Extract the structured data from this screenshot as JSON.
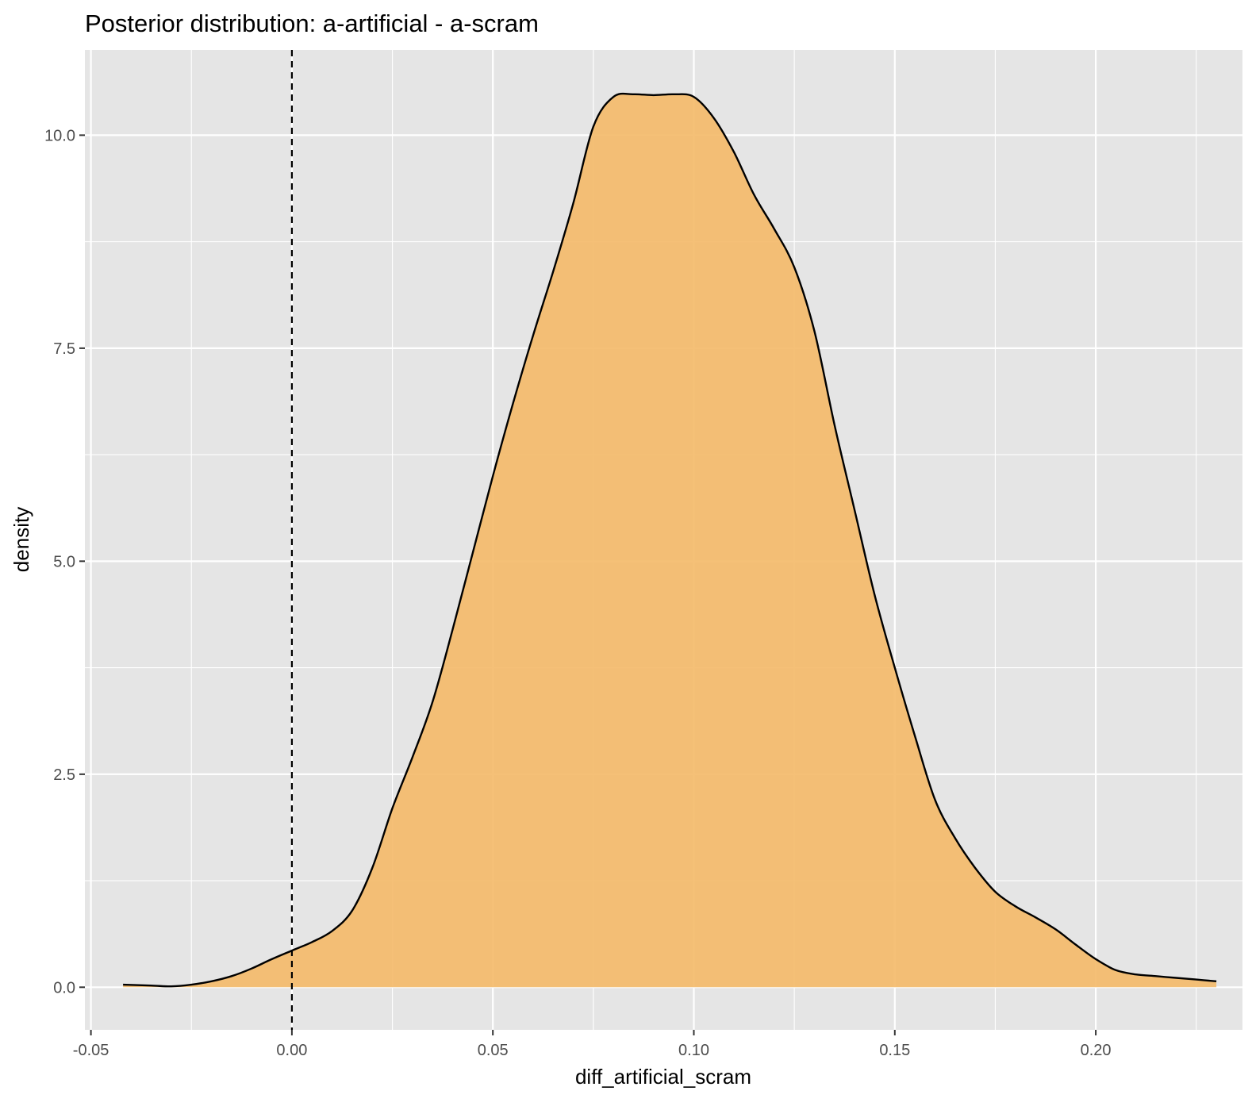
{
  "chart_data": {
    "type": "area",
    "title": "Posterior distribution: a-artificial - a-scram",
    "xlabel": "diff_artificial_scram",
    "ylabel": "density",
    "xlim": [
      -0.0515,
      0.2365
    ],
    "ylim": [
      -0.5,
      11.0
    ],
    "grid": true,
    "x_ticks": [
      -0.05,
      0.0,
      0.05,
      0.1,
      0.15,
      0.2
    ],
    "x_tick_labels": [
      "-0.05",
      "0.00",
      "0.05",
      "0.10",
      "0.15",
      "0.20"
    ],
    "x_minor_ticks": [
      -0.025,
      0.025,
      0.075,
      0.125,
      0.175,
      0.225
    ],
    "y_ticks": [
      0.0,
      2.5,
      5.0,
      7.5,
      10.0
    ],
    "y_tick_labels": [
      "0.0",
      "2.5",
      "5.0",
      "7.5",
      "10.0"
    ],
    "y_minor_ticks": [
      1.25,
      3.75,
      6.25,
      8.75
    ],
    "reference_line": {
      "x": 0.0,
      "style": "dashed"
    },
    "fill_color": "#f4bb6b",
    "line_color": "#000000",
    "panel_color": "#e5e5e5",
    "series": [
      {
        "x": [
          -0.042,
          -0.035,
          -0.03,
          -0.025,
          -0.02,
          -0.015,
          -0.01,
          -0.005,
          0.0,
          0.005,
          0.01,
          0.015,
          0.02,
          0.025,
          0.03,
          0.035,
          0.04,
          0.045,
          0.05,
          0.055,
          0.06,
          0.065,
          0.07,
          0.075,
          0.08,
          0.085,
          0.09,
          0.095,
          0.1,
          0.105,
          0.11,
          0.115,
          0.12,
          0.125,
          0.13,
          0.135,
          0.14,
          0.145,
          0.15,
          0.155,
          0.16,
          0.165,
          0.17,
          0.175,
          0.18,
          0.185,
          0.19,
          0.195,
          0.2,
          0.205,
          0.21,
          0.215,
          0.22,
          0.225,
          0.23
        ],
        "y": [
          0.03,
          0.02,
          0.01,
          0.03,
          0.07,
          0.13,
          0.22,
          0.33,
          0.43,
          0.53,
          0.66,
          0.9,
          1.4,
          2.1,
          2.7,
          3.35,
          4.2,
          5.1,
          6.0,
          6.85,
          7.65,
          8.4,
          9.2,
          10.1,
          10.45,
          10.48,
          10.47,
          10.48,
          10.45,
          10.2,
          9.8,
          9.3,
          8.9,
          8.45,
          7.7,
          6.6,
          5.6,
          4.6,
          3.75,
          2.95,
          2.2,
          1.75,
          1.4,
          1.12,
          0.95,
          0.82,
          0.68,
          0.5,
          0.33,
          0.2,
          0.15,
          0.13,
          0.11,
          0.09,
          0.07
        ]
      }
    ]
  }
}
